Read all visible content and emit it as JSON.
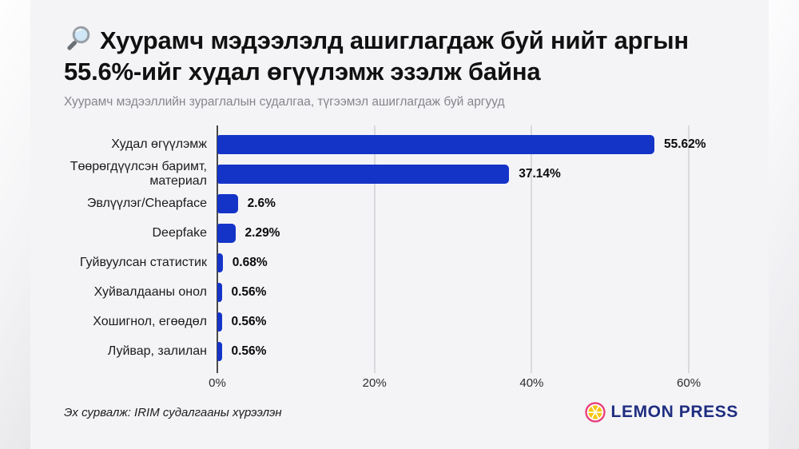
{
  "chart_data": {
    "type": "bar",
    "orientation": "horizontal",
    "title": "Хуурамч мэдээлэлд ашиглагдаж буй нийт аргын 55.6%-ийг худал өгүүлэмж эзэлж байна",
    "subtitle": "Хуурамч мэдээллийн зураглалын судалгаа, түгээмэл ашиглагдаж буй аргууд",
    "categories": [
      "Худал өгүүлэмж",
      "Төөрөгдүүлсэн баримт, материал",
      "Эвлүүлэг/Cheapface",
      "Deepfake",
      "Гуйвуулсан статистик",
      "Хуйвалдааны онол",
      "Хошигнол, егөөдөл",
      "Луйвар, залилан"
    ],
    "values": [
      55.62,
      37.14,
      2.6,
      2.29,
      0.68,
      0.56,
      0.56,
      0.56
    ],
    "value_labels": [
      "55.62%",
      "37.14%",
      "2.6%",
      "2.29%",
      "0.68%",
      "0.56%",
      "0.56%",
      "0.56%"
    ],
    "x_ticks": [
      {
        "label": "0%",
        "value": 0
      },
      {
        "label": "20%",
        "value": 20
      },
      {
        "label": "40%",
        "value": 40
      },
      {
        "label": "60%",
        "value": 60
      }
    ],
    "xlim": [
      0,
      66.5
    ],
    "grid": true,
    "legend": false,
    "bar_color": "#1434c8"
  },
  "footer": {
    "source": "Эх сурвалж: IRIM судалгааны хүрээлэн",
    "brand": "LEMON PRESS"
  },
  "icons": {
    "title_icon": "magnifying-glass-icon",
    "brand_icon": "lemon-icon"
  },
  "colors": {
    "bar": "#1434c8",
    "background": "#f4f4f7",
    "gridline": "#d9d9de",
    "axis": "#4a4a4a",
    "title": "#111111",
    "subtitle": "#85858c",
    "value_label": "#0b0b0c",
    "brand_navy": "#1f2e80",
    "lemon_ring": "#e8417d",
    "lemon_yellow": "#f6c50f"
  }
}
